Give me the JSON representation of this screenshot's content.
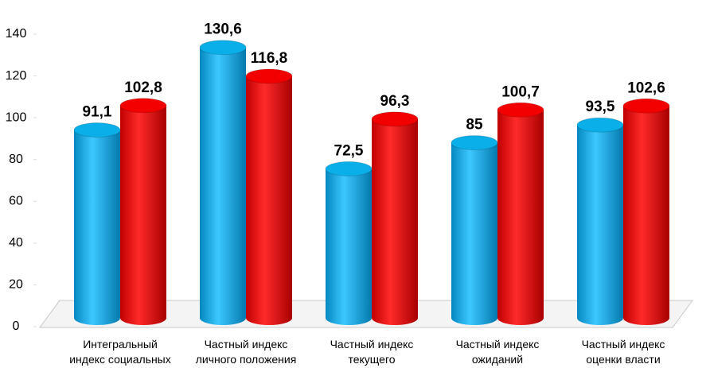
{
  "chart_data": {
    "type": "bar3d",
    "categories": [
      "Интегральный\nиндекс социальных",
      "Частный индекс\nличного положения",
      "Частный индекс\nтекущего",
      "Частный индекс\nожиданий",
      "Частный индекс\nоценки власти"
    ],
    "series": [
      {
        "color": "#0aaee8",
        "values": [
          91.1,
          130.6,
          72.5,
          85,
          93.5
        ],
        "value_labels": [
          "91,1",
          "130,6",
          "72,5",
          "85",
          "93,5"
        ]
      },
      {
        "color": "#f20000",
        "values": [
          102.8,
          116.8,
          96.3,
          100.7,
          102.6
        ],
        "value_labels": [
          "102,8",
          "116,8",
          "96,3",
          "100,7",
          "102,6"
        ]
      }
    ],
    "ylim": [
      0,
      140
    ],
    "yticks": [
      0,
      20,
      40,
      60,
      80,
      100,
      120,
      140
    ]
  }
}
